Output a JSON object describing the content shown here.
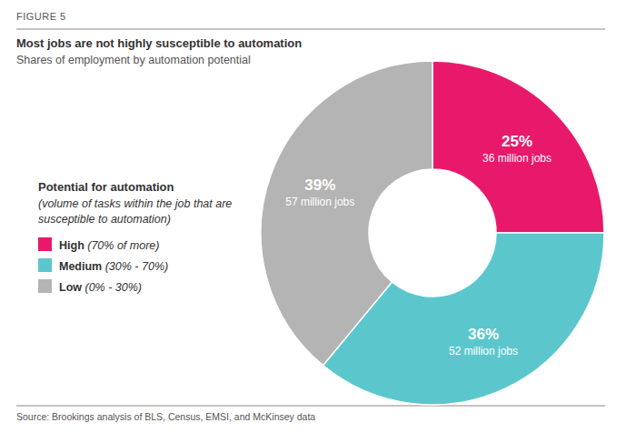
{
  "chart_data": {
    "type": "pie",
    "title": "Most jobs are not highly susceptible to automation",
    "subtitle": "Shares of employment by automation potential",
    "categories": [
      "High (70% of more)",
      "Medium (30% - 70%)",
      "Low (0% - 30%)"
    ],
    "values": [
      25,
      36,
      39
    ],
    "value_labels": [
      "25%",
      "36%",
      "39%"
    ],
    "jobs_labels": [
      "36 million jobs",
      "52 million jobs",
      "57 million jobs"
    ],
    "colors": [
      "#e8196b",
      "#5bc7cd",
      "#b4b4b4"
    ],
    "data_labels": true,
    "legend": "left",
    "annotations": {
      "figure_label": "FIGURE 5",
      "legend_title": "Potential for automation",
      "legend_subtitle": "(volume of tasks within the job that are susceptible to automation)",
      "source": "Source: Brookings analysis of BLS, Census, EMSI, and McKinsey data"
    }
  }
}
